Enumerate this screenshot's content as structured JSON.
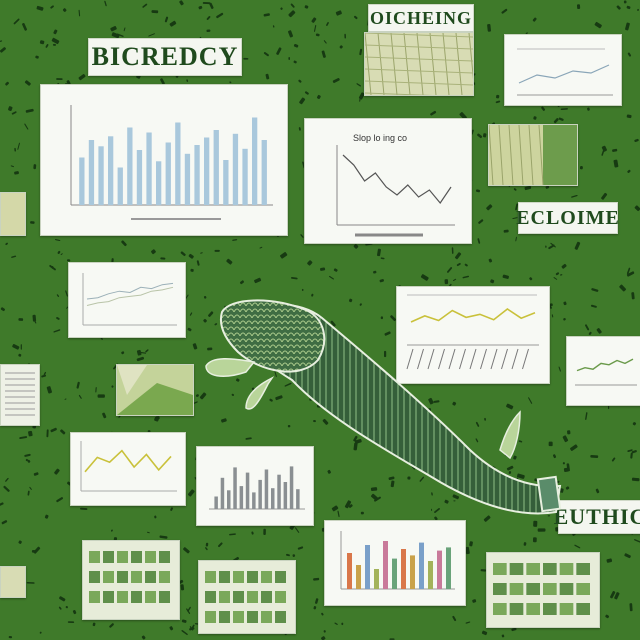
{
  "labels": {
    "label_1": "BICREDCY",
    "label_2": "OICHEING",
    "label_3": "ECLOIME",
    "label_4": "EUTHIC"
  },
  "card_captions": {
    "line_chart_title": "Slop lo ing co"
  },
  "colors": {
    "background": "#3f7a2a",
    "background_dark": "#173a12",
    "label_text": "#1f4a1d",
    "bar_fill": "#a9c8dc",
    "line_yellow": "#c9c13a",
    "line_green": "#6a9a4a",
    "creature_body": "#3f6d43",
    "creature_fin": "#b9d59a"
  },
  "chart_data": [
    {
      "type": "bar",
      "values": [
        38,
        52,
        47,
        55,
        30,
        62,
        44,
        58,
        35,
        50,
        66,
        41,
        48,
        54,
        60,
        36,
        57,
        45,
        70,
        52
      ],
      "ylim": [
        0,
        80
      ]
    },
    {
      "type": "line",
      "title": "Slop lo ing co",
      "values": [
        70,
        60,
        44,
        52,
        38,
        30,
        40,
        28,
        35,
        22,
        38
      ],
      "ylim": [
        0,
        80
      ]
    },
    {
      "type": "line",
      "series": [
        {
          "values": [
            40,
            42,
            48,
            52,
            50,
            58,
            56,
            62,
            64
          ]
        },
        {
          "values": [
            30,
            34,
            36,
            42,
            44,
            46,
            52,
            54,
            58
          ]
        }
      ],
      "ylim": [
        0,
        80
      ]
    },
    {
      "type": "line",
      "values": [
        30,
        38,
        32,
        45,
        36,
        40,
        33,
        47,
        35,
        42
      ],
      "ylim": [
        0,
        60
      ]
    },
    {
      "type": "line",
      "values": [
        20,
        35,
        30,
        42,
        25,
        38,
        22,
        36
      ],
      "ylim": [
        0,
        50
      ]
    },
    {
      "type": "bar",
      "values": [
        12,
        30,
        18,
        40,
        22,
        35,
        16,
        28,
        38,
        20,
        33,
        26,
        41,
        19
      ],
      "ylim": [
        0,
        50
      ]
    },
    {
      "type": "bar",
      "values": [
        45,
        30,
        55,
        25,
        60,
        38,
        50,
        42,
        58,
        35,
        48,
        52
      ],
      "ylim": [
        0,
        70
      ]
    },
    {
      "type": "line",
      "values": [
        20,
        24,
        22,
        30,
        28,
        34,
        30,
        36
      ],
      "ylim": [
        0,
        50
      ]
    },
    {
      "type": "line",
      "values": [
        10,
        18,
        15,
        22,
        20,
        28
      ],
      "ylim": [
        0,
        40
      ]
    }
  ]
}
